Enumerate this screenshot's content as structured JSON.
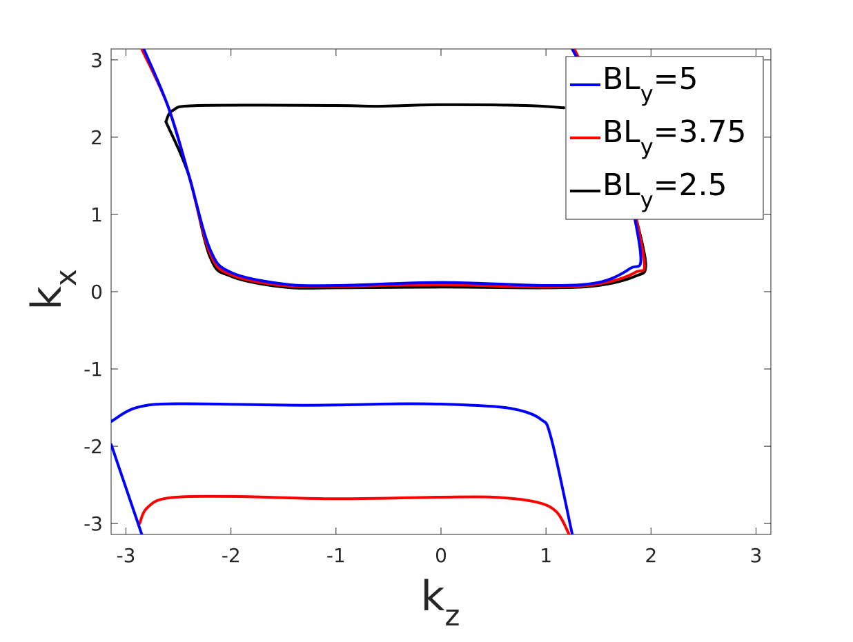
{
  "chart_data": {
    "type": "line",
    "xlabel": {
      "base": "k",
      "sub": "z"
    },
    "ylabel": {
      "base": "k",
      "sub": "x"
    },
    "xlim": [
      -3.14159,
      3.14159
    ],
    "ylim": [
      -3.14159,
      3.14159
    ],
    "x_ticks": [
      -3,
      -2,
      -1,
      0,
      1,
      2,
      3
    ],
    "y_ticks": [
      -3,
      -2,
      -1,
      0,
      1,
      2,
      3
    ],
    "x_tick_labels": [
      "-3",
      "-2",
      "-1",
      "0",
      "1",
      "2",
      "3"
    ],
    "y_tick_labels": [
      "-3",
      "-2",
      "-1",
      "0",
      "1",
      "2",
      "3"
    ],
    "grid": false,
    "legend_position": "top-right",
    "series": [
      {
        "name": "BL_y=5",
        "legend": {
          "base": "BL",
          "sub": "y",
          "suffix": "=5"
        },
        "color": "#0000ff",
        "segments": [
          [
            [
              -2.83,
              3.14
            ],
            [
              -2.6,
              2.4
            ],
            [
              -2.4,
              1.5
            ],
            [
              -2.2,
              0.55
            ],
            [
              -2.0,
              0.25
            ],
            [
              -1.5,
              0.1
            ],
            [
              -1.0,
              0.08
            ],
            [
              0.0,
              0.12
            ],
            [
              1.0,
              0.08
            ],
            [
              1.5,
              0.12
            ],
            [
              1.8,
              0.3
            ],
            [
              1.9,
              0.5
            ],
            [
              1.7,
              1.8
            ],
            [
              1.5,
              2.5
            ],
            [
              1.25,
              3.14
            ]
          ],
          [
            [
              -3.14,
              -1.68
            ],
            [
              -2.9,
              -1.5
            ],
            [
              -2.5,
              -1.45
            ],
            [
              -1.3,
              -1.47
            ],
            [
              -0.3,
              -1.45
            ],
            [
              0.3,
              -1.47
            ],
            [
              0.7,
              -1.52
            ],
            [
              0.95,
              -1.65
            ],
            [
              1.05,
              -1.9
            ],
            [
              1.25,
              -3.14
            ]
          ],
          [
            [
              -3.14,
              -1.98
            ],
            [
              -2.85,
              -3.14
            ]
          ]
        ]
      },
      {
        "name": "BL_y=3.75",
        "legend": {
          "base": "BL",
          "sub": "y",
          "suffix": "=3.75"
        },
        "color": "#ff0000",
        "segments": [
          [
            [
              -2.85,
              3.14
            ],
            [
              -2.6,
              2.4
            ],
            [
              -2.4,
              1.5
            ],
            [
              -2.2,
              0.5
            ],
            [
              -2.0,
              0.22
            ],
            [
              -1.5,
              0.08
            ],
            [
              -1.0,
              0.07
            ],
            [
              0.0,
              0.09
            ],
            [
              1.0,
              0.06
            ],
            [
              1.5,
              0.1
            ],
            [
              1.85,
              0.25
            ],
            [
              1.93,
              0.45
            ],
            [
              1.7,
              1.8
            ],
            [
              1.5,
              2.5
            ],
            [
              1.27,
              3.14
            ]
          ],
          [
            [
              -2.87,
              -3.0
            ],
            [
              -2.8,
              -2.8
            ],
            [
              -2.6,
              -2.67
            ],
            [
              -2.0,
              -2.65
            ],
            [
              -1.0,
              -2.68
            ],
            [
              0.0,
              -2.66
            ],
            [
              0.5,
              -2.66
            ],
            [
              0.9,
              -2.72
            ],
            [
              1.1,
              -2.85
            ],
            [
              1.22,
              -3.14
            ]
          ]
        ]
      },
      {
        "name": "BL_y=2.5",
        "legend": {
          "base": "BL",
          "sub": "y",
          "suffix": "=2.5"
        },
        "color": "#000000",
        "segments": [
          [
            [
              -2.62,
              2.2
            ],
            [
              -2.55,
              2.35
            ],
            [
              -2.3,
              2.41
            ],
            [
              -1.0,
              2.41
            ],
            [
              -0.6,
              2.4
            ],
            [
              0.0,
              2.42
            ],
            [
              0.8,
              2.41
            ],
            [
              1.17,
              2.38
            ]
          ],
          [
            [
              -2.62,
              2.2
            ],
            [
              -2.4,
              1.5
            ],
            [
              -2.2,
              0.45
            ],
            [
              -2.0,
              0.2
            ],
            [
              -1.5,
              0.06
            ],
            [
              -1.0,
              0.05
            ],
            [
              0.0,
              0.06
            ],
            [
              1.0,
              0.05
            ],
            [
              1.5,
              0.08
            ],
            [
              1.85,
              0.2
            ],
            [
              1.95,
              0.35
            ],
            [
              1.85,
              1.0
            ]
          ]
        ]
      }
    ]
  }
}
